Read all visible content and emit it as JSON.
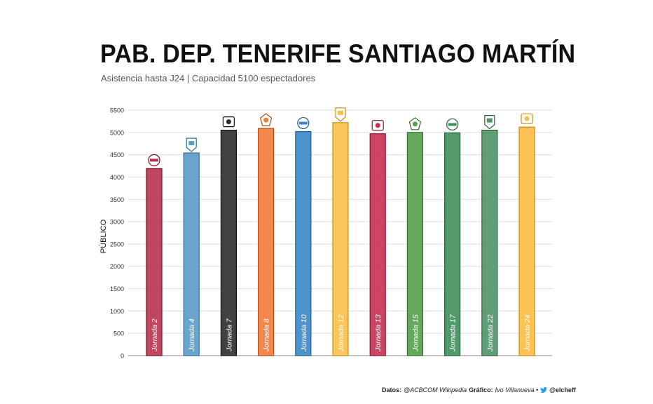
{
  "header": {
    "title": "PAB. DEP. TENERIFE SANTIAGO MARTÍN",
    "subtitle": "Asistencia hasta J24 | Capacidad 5100 espectadores"
  },
  "chart_data": {
    "type": "bar",
    "title": "PAB. DEP. TENERIFE SANTIAGO MARTÍN",
    "subtitle": "Asistencia hasta J24 | Capacidad 5100 espectadores",
    "xlabel": "",
    "ylabel": "PÚBLICO",
    "ylim": [
      0,
      5500
    ],
    "yticks": [
      0,
      500,
      1000,
      1500,
      2000,
      2500,
      3000,
      3500,
      4000,
      4500,
      5000,
      5500
    ],
    "grid": true,
    "categories": [
      "Jornada 2",
      "Jornada 4",
      "Jornada 7",
      "Jornada 8",
      "Jornada 10",
      "Jornada 12",
      "Jornada 13",
      "Jornada 15",
      "Jornada 17",
      "Jornada 22",
      "Jornada 24"
    ],
    "values": [
      4190,
      4540,
      5050,
      5090,
      5020,
      5220,
      4970,
      5000,
      4990,
      5050,
      5120
    ],
    "colors": [
      "#b5334d",
      "#5b9bc8",
      "#2e2e2e",
      "#f37a38",
      "#3a87c9",
      "#fdc04a",
      "#c53254",
      "#55a04d",
      "#3f8f5a",
      "#4f9367",
      "#fcbd41"
    ],
    "borders": [
      "#7a1024",
      "#2f6c9a",
      "#111111",
      "#b44e10",
      "#1e5e98",
      "#c08d12",
      "#8a1431",
      "#2e6e2a",
      "#1f6136",
      "#275f3d",
      "#c08d12"
    ],
    "logos": [
      "baxi-manresa-icon",
      "coosur-betis-old-icon",
      "tenerife-icon",
      "valencia-basket-icon",
      "ucam-murcia-icon",
      "real-madrid-icon",
      "bilbao-basket-icon",
      "unicaja-icon",
      "real-betis-icon",
      "joventut-icon",
      "gran-canaria-icon"
    ]
  },
  "footer": {
    "datos_label": "Datos:",
    "datos_value": "@ACBCOM  Wikipedia",
    "grafico_label": "Gráfico:",
    "grafico_value": "Ivo Villanueva •",
    "handle": "@elcheff"
  }
}
